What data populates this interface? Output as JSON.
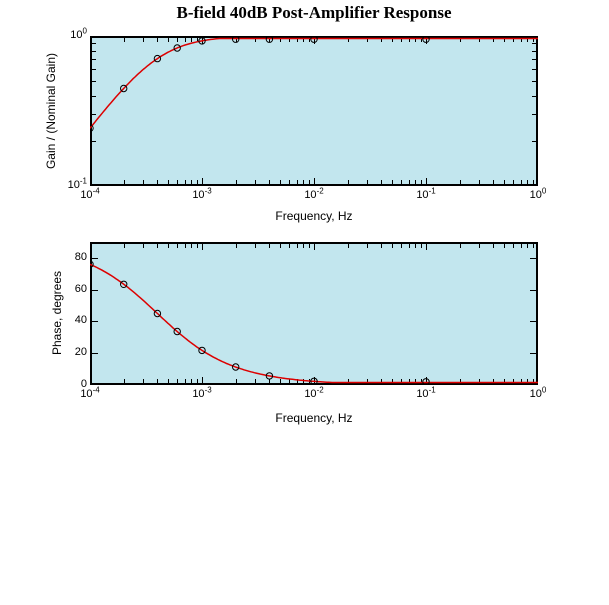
{
  "title": "B-field 40dB Post-Amplifier Response",
  "colors": {
    "figure_bg": "#ffffff",
    "plot_bg": "#c2e6ee",
    "curve": "#dd0000",
    "marker": "#000000",
    "axis": "#000000",
    "text": "#000000"
  },
  "chart_data": [
    {
      "type": "line",
      "name": "gain-response",
      "title": "",
      "xlabel": "Frequency, Hz",
      "ylabel": "Gain / (Nominal Gain)",
      "xscale": "log",
      "yscale": "log",
      "xlim": [
        0.0001,
        1
      ],
      "ylim": [
        0.1,
        1
      ],
      "grid": false,
      "legend": null,
      "marker": "o",
      "xticks": {
        "values": [
          0.0001,
          0.001,
          0.01,
          0.1,
          1
        ],
        "labels": [
          "10^-4",
          "10^-3",
          "10^-2",
          "10^-1",
          "10^0"
        ]
      },
      "yticks": {
        "values": [
          1,
          0.1
        ],
        "labels": [
          "10^0",
          "10^-1"
        ]
      },
      "x": [
        0.0001,
        0.0002,
        0.0004,
        0.0006,
        0.001,
        0.002,
        0.004,
        0.01,
        0.1
      ],
      "y": [
        0.243,
        0.447,
        0.707,
        0.832,
        0.928,
        0.981,
        0.995,
        0.999,
        1.0
      ],
      "model": {
        "kind": "single_pole_highpass",
        "quantity": "gain",
        "fc": 0.0004
      }
    },
    {
      "type": "line",
      "name": "phase-response",
      "title": "",
      "xlabel": "Frequency, Hz",
      "ylabel": "Phase, degrees",
      "xscale": "log",
      "yscale": "linear",
      "xlim": [
        0.0001,
        1
      ],
      "ylim": [
        0,
        90
      ],
      "grid": false,
      "legend": null,
      "marker": "o",
      "xticks": {
        "values": [
          0.0001,
          0.001,
          0.01,
          0.1,
          1
        ],
        "labels": [
          "10^-4",
          "10^-3",
          "10^-2",
          "10^-1",
          "10^0"
        ]
      },
      "yticks": {
        "values": [
          80,
          60,
          40,
          20,
          0
        ],
        "labels": [
          "80",
          "60",
          "40",
          "20",
          "0"
        ]
      },
      "x": [
        0.0001,
        0.0002,
        0.0004,
        0.0006,
        0.001,
        0.002,
        0.004,
        0.01,
        0.1
      ],
      "y": [
        76.0,
        63.4,
        45.0,
        33.7,
        21.8,
        11.3,
        5.7,
        2.3,
        0.2
      ],
      "model": {
        "kind": "single_pole_highpass",
        "quantity": "phase_deg",
        "fc": 0.0004
      }
    }
  ]
}
